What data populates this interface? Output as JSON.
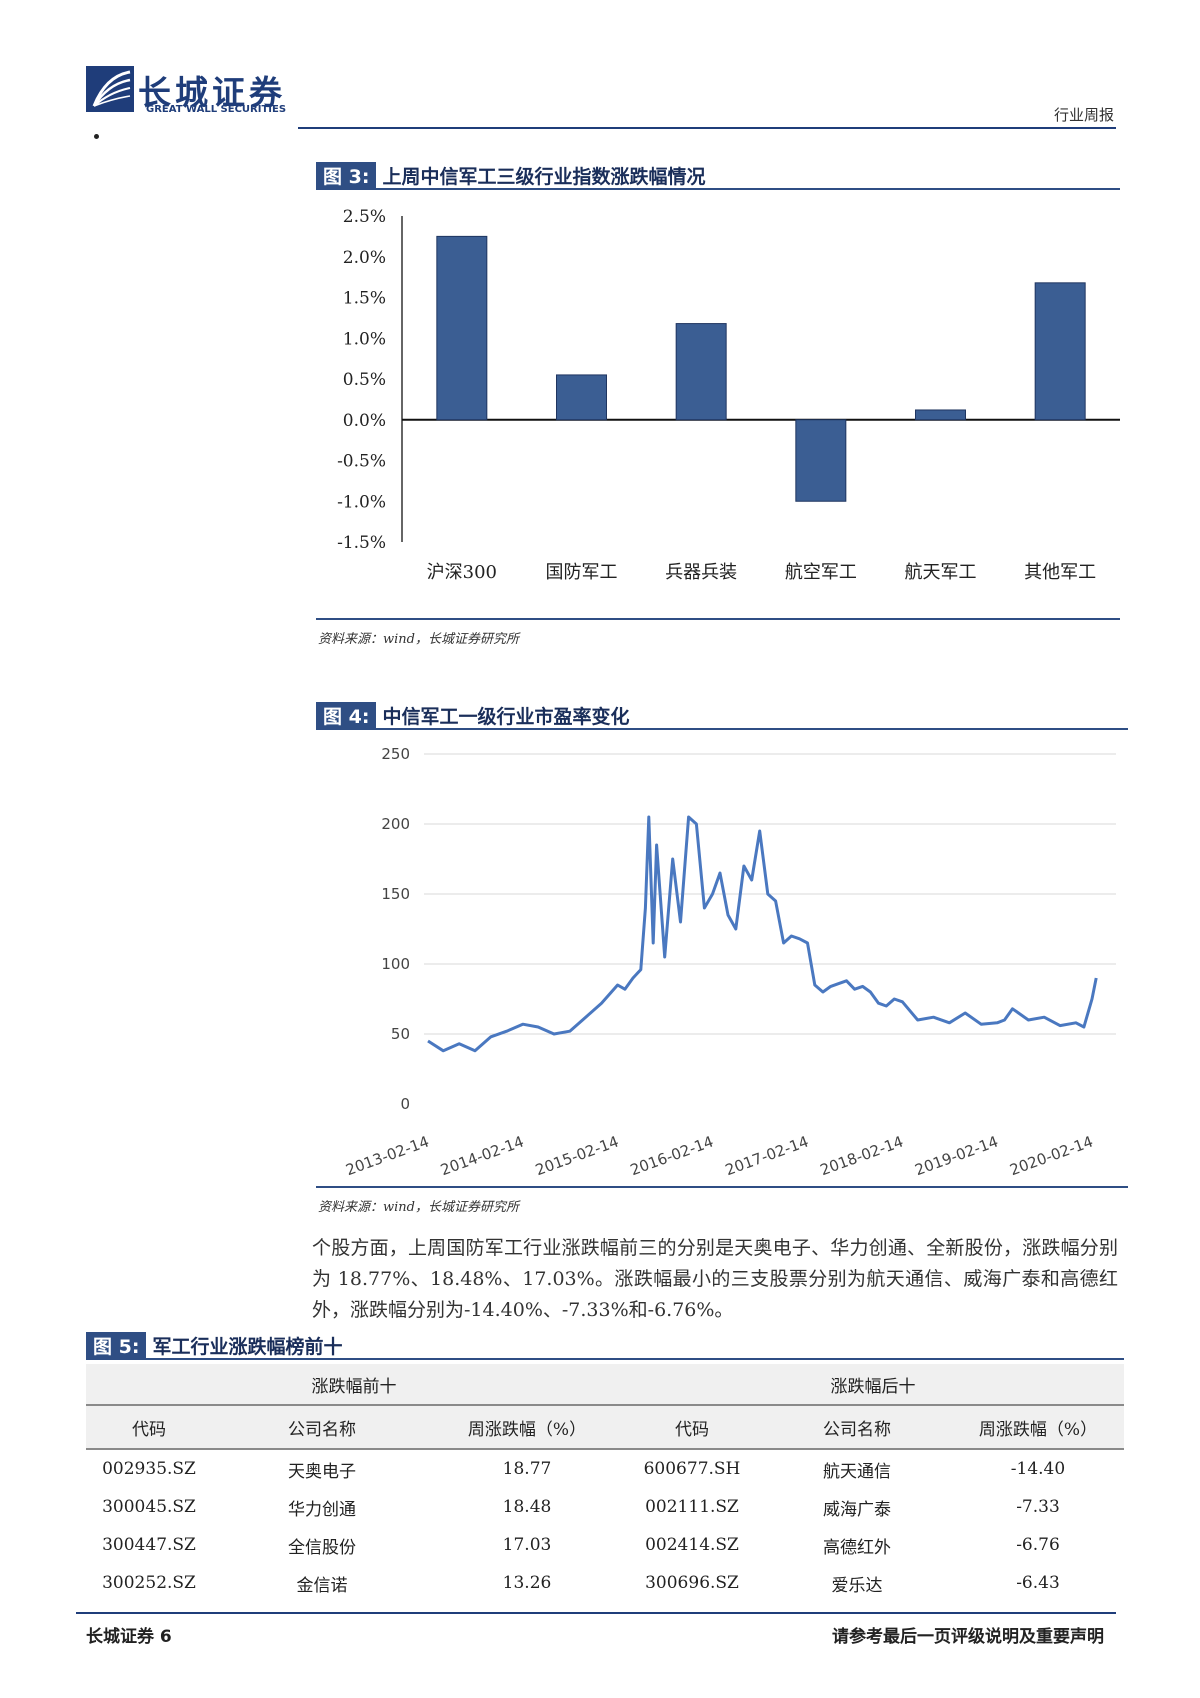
{
  "header": {
    "logo_cn": "长城证券",
    "logo_en": "GREAT WALL SECURITIES",
    "report_type": "行业周报"
  },
  "figure3": {
    "num": "图 3:",
    "title": "上周中信军工三级行业指数涨跌幅情况",
    "source": "资料来源：wind，长城证券研究所"
  },
  "figure4": {
    "num": "图 4:",
    "title": "中信军工一级行业市盈率变化",
    "source": "资料来源：wind，长城证券研究所"
  },
  "paragraph": "个股方面，上周国防军工行业涨跌幅前三的分别是天奥电子、华力创通、全新股份，涨跌幅分别为 18.77%、18.48%、17.03%。涨跌幅最小的三支股票分别为航天通信、威海广泰和高德红外，涨跌幅分别为-14.40%、-7.33%和-6.76%。",
  "figure5": {
    "num": "图 5:",
    "title": "军工行业涨跌幅榜前十",
    "group_top": "涨跌幅前十",
    "group_bottom": "涨跌幅后十",
    "columns": [
      "代码",
      "公司名称",
      "周涨跌幅（%）",
      "代码",
      "公司名称",
      "周涨跌幅（%）"
    ],
    "rows": [
      [
        "002935.SZ",
        "天奥电子",
        "18.77",
        "600677.SH",
        "航天通信",
        "-14.40"
      ],
      [
        "300045.SZ",
        "华力创通",
        "18.48",
        "002111.SZ",
        "威海广泰",
        "-7.33"
      ],
      [
        "300447.SZ",
        "全信股份",
        "17.03",
        "002414.SZ",
        "高德红外",
        "-6.76"
      ],
      [
        "300252.SZ",
        "金信诺",
        "13.26",
        "300696.SZ",
        "爱乐达",
        "-6.43"
      ]
    ]
  },
  "footer": {
    "left": "长城证券 6",
    "right": "请参考最后一页评级说明及重要声明"
  },
  "chart_data": [
    {
      "type": "bar",
      "categories": [
        "沪深300",
        "国防军工",
        "兵器兵装",
        "航空军工",
        "航天军工",
        "其他军工"
      ],
      "values": [
        2.25,
        0.55,
        1.18,
        -1.0,
        0.12,
        1.68
      ],
      "ylim": [
        -1.5,
        2.5
      ],
      "yticks": [
        "2.5%",
        "2.0%",
        "1.5%",
        "1.0%",
        "0.5%",
        "0.0%",
        "-0.5%",
        "-1.0%",
        "-1.5%"
      ],
      "color": "#3b5e93",
      "grid": false
    },
    {
      "type": "line",
      "x_ticks": [
        "2013-02-14",
        "2014-02-14",
        "2015-02-14",
        "2016-02-14",
        "2017-02-14",
        "2018-02-14",
        "2019-02-14",
        "2020-02-14"
      ],
      "ylim": [
        0,
        250
      ],
      "yticks": [
        "250",
        "200",
        "150",
        "100",
        "50",
        "0"
      ],
      "color": "#4a78c0",
      "grid": true,
      "x": [
        "2013-02-14",
        "2013-04-14",
        "2013-06-14",
        "2013-08-14",
        "2013-10-14",
        "2013-12-14",
        "2014-02-14",
        "2014-04-14",
        "2014-06-14",
        "2014-08-14",
        "2014-10-14",
        "2014-12-14",
        "2015-02-14",
        "2015-03-14",
        "2015-04-14",
        "2015-05-14",
        "2015-06-01",
        "2015-06-14",
        "2015-07-01",
        "2015-07-14",
        "2015-08-14",
        "2015-09-14",
        "2015-10-14",
        "2015-11-14",
        "2015-12-14",
        "2016-01-14",
        "2016-02-14",
        "2016-03-14",
        "2016-04-14",
        "2016-05-14",
        "2016-06-14",
        "2016-07-14",
        "2016-08-14",
        "2016-09-14",
        "2016-10-14",
        "2016-11-14",
        "2016-12-14",
        "2017-01-14",
        "2017-02-14",
        "2017-03-14",
        "2017-04-14",
        "2017-05-14",
        "2017-06-14",
        "2017-07-14",
        "2017-08-14",
        "2017-09-14",
        "2017-10-14",
        "2017-11-14",
        "2017-12-14",
        "2018-01-14",
        "2018-02-14",
        "2018-04-14",
        "2018-06-14",
        "2018-08-14",
        "2018-10-14",
        "2018-12-14",
        "2019-02-14",
        "2019-03-14",
        "2019-04-14",
        "2019-06-14",
        "2019-08-14",
        "2019-10-14",
        "2019-12-14",
        "2020-01-14",
        "2020-02-14",
        "2020-03-01"
      ],
      "series": [
        {
          "values": [
            45,
            38,
            43,
            38,
            48,
            52,
            57,
            55,
            50,
            52,
            62,
            72,
            85,
            82,
            90,
            96,
            140,
            205,
            115,
            185,
            105,
            175,
            130,
            205,
            200,
            140,
            150,
            165,
            135,
            125,
            170,
            160,
            195,
            150,
            145,
            115,
            120,
            118,
            115,
            85,
            80,
            84,
            86,
            88,
            82,
            84,
            80,
            72,
            70,
            75,
            73,
            60,
            62,
            58,
            65,
            57,
            58,
            60,
            68,
            60,
            62,
            56,
            58,
            55,
            75,
            90
          ]
        }
      ]
    }
  ]
}
